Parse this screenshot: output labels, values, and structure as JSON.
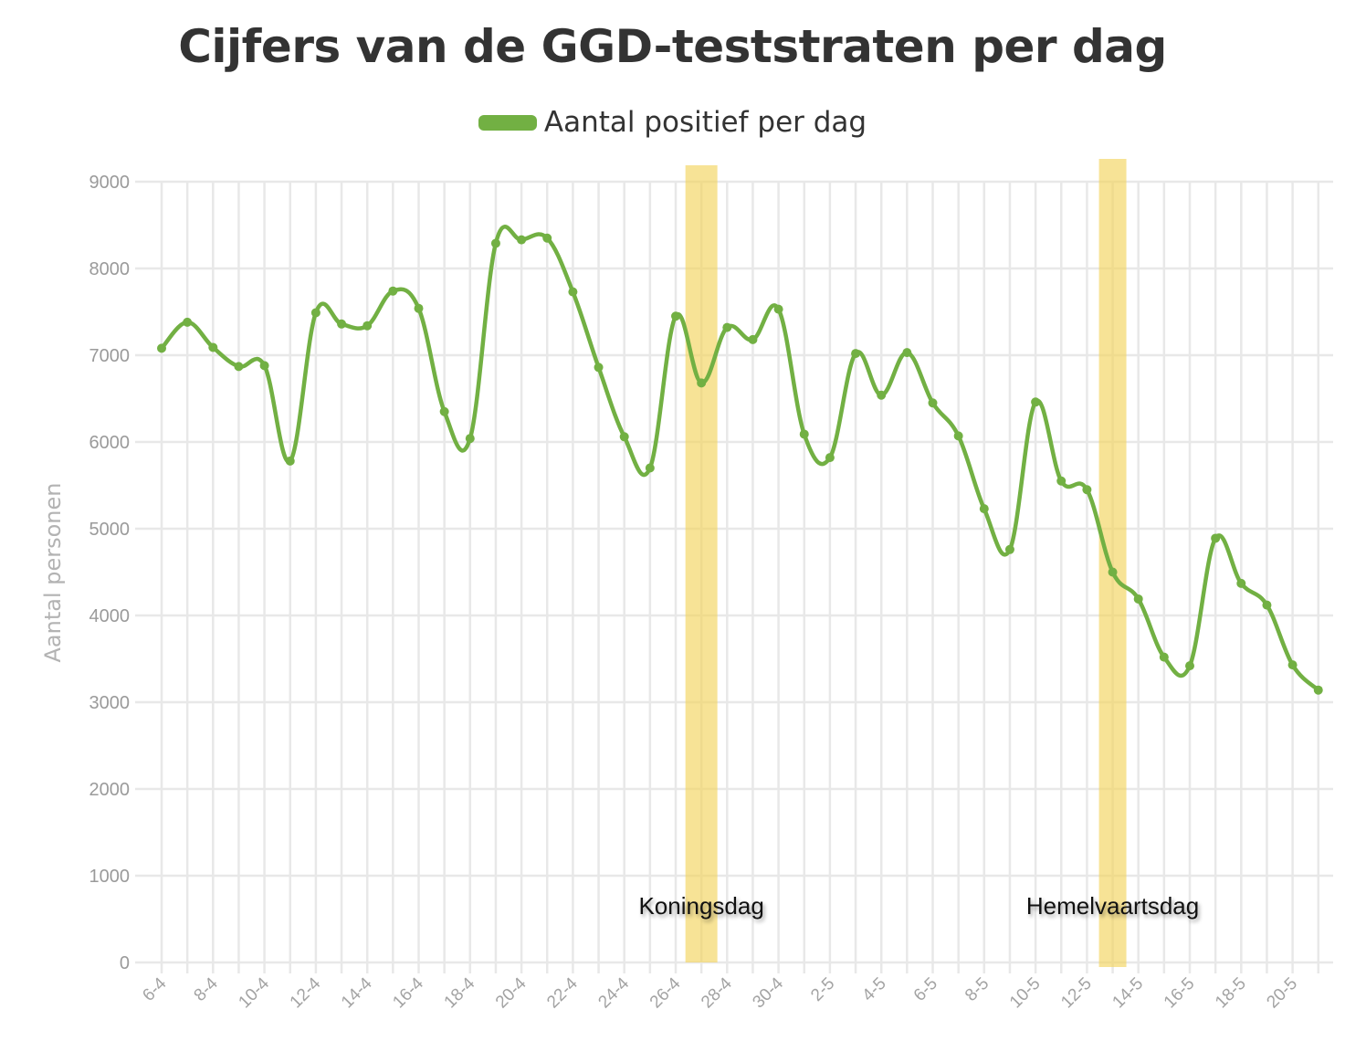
{
  "chart_data": {
    "type": "line",
    "title": "Cijfers van de GGD-teststraten per dag",
    "ylabel": "Aantal personen",
    "xlabel": "",
    "ylim": [
      0,
      9000
    ],
    "yticks": [
      "0",
      "1000",
      "2000",
      "3000",
      "4000",
      "5000",
      "6000",
      "7000",
      "8000",
      "9000"
    ],
    "grid": true,
    "legend_position": "top-center",
    "x": [
      "6-4",
      "7-4",
      "8-4",
      "9-4",
      "10-4",
      "11-4",
      "12-4",
      "13-4",
      "14-4",
      "15-4",
      "16-4",
      "17-4",
      "18-4",
      "19-4",
      "20-4",
      "21-4",
      "22-4",
      "23-4",
      "24-4",
      "25-4",
      "26-4",
      "27-4",
      "28-4",
      "29-4",
      "30-4",
      "1-5",
      "2-5",
      "3-5",
      "4-5",
      "5-5",
      "6-5",
      "7-5",
      "8-5",
      "9-5",
      "10-5",
      "11-5",
      "12-5",
      "13-5",
      "14-5",
      "15-5",
      "16-5",
      "17-5",
      "18-5",
      "19-5",
      "20-5",
      "21-5"
    ],
    "x_tick_labels": [
      "6-4",
      "8-4",
      "10-4",
      "12-4",
      "14-4",
      "16-4",
      "18-4",
      "20-4",
      "22-4",
      "24-4",
      "26-4",
      "28-4",
      "30-4",
      "2-5",
      "4-5",
      "6-5",
      "8-5",
      "10-5",
      "12-5",
      "14-5",
      "16-5",
      "18-5",
      "20-5"
    ],
    "series": [
      {
        "name": "Aantal positief per dag",
        "color": "#72b043",
        "values": [
          7080,
          7380,
          7090,
          6870,
          6880,
          5780,
          7490,
          7360,
          7340,
          7740,
          7540,
          6350,
          6040,
          8290,
          8330,
          8350,
          7730,
          6860,
          6060,
          5700,
          7450,
          6680,
          7320,
          7180,
          7530,
          6090,
          5820,
          7020,
          6540,
          7030,
          6450,
          6070,
          5230,
          4760,
          6460,
          5550,
          5450,
          4500,
          4190,
          3520,
          3420,
          4890,
          4370,
          4120,
          3430,
          3140
        ]
      }
    ],
    "annotations": [
      {
        "label": "Koningsdag",
        "date": "27-4",
        "color": "#f2d45e"
      },
      {
        "label": "Hemelvaartsdag",
        "date": "13-5",
        "color": "#f2d45e"
      }
    ]
  }
}
